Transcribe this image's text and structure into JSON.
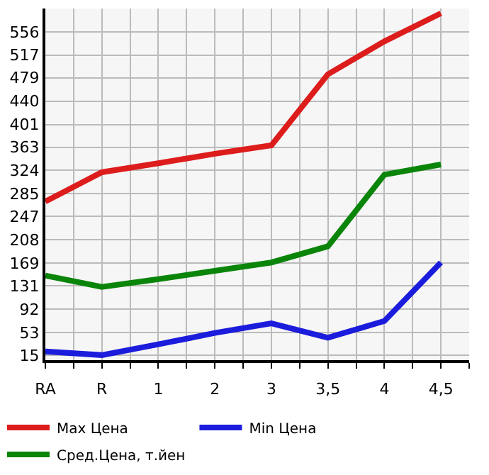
{
  "chart_data": {
    "type": "line",
    "categories": [
      "RA",
      "R",
      "1",
      "2",
      "3",
      "3,5",
      "4",
      "4,5"
    ],
    "series": [
      {
        "name": "Max Цена",
        "color": "#dd1c1c",
        "values": [
          272,
          321,
          336,
          352,
          366,
          485,
          540,
          587
        ]
      },
      {
        "name": "Min Цена",
        "color": "#1c1cdd",
        "values": [
          21,
          15,
          33,
          52,
          68,
          44,
          72,
          170
        ]
      },
      {
        "name": "Сред.Цена, т.йен",
        "color": "#0a850a",
        "values": [
          148,
          129,
          142,
          156,
          170,
          197,
          317,
          334
        ]
      }
    ],
    "ylim": [
      7,
      595
    ],
    "yticks": [
      15,
      53,
      92,
      131,
      169,
      208,
      247,
      285,
      324,
      363,
      401,
      440,
      479,
      517,
      556
    ],
    "grid": true,
    "legend": "bottom",
    "marker": "none",
    "line_style": "solid"
  }
}
